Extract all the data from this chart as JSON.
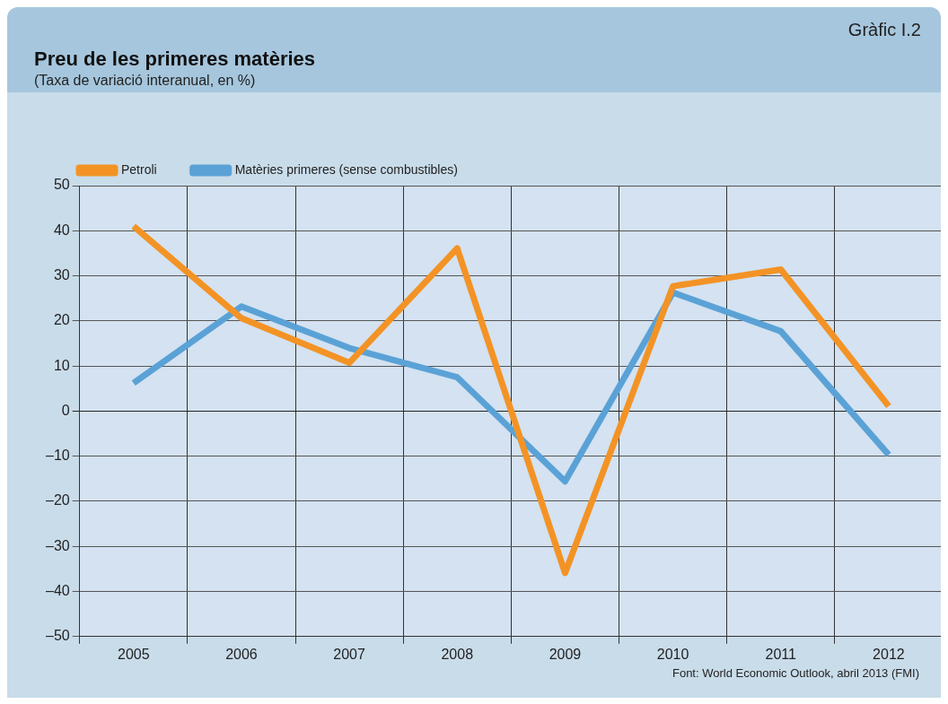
{
  "chart_data": {
    "type": "line",
    "title": "Preu de les primeres matèries",
    "subtitle": "(Taxa de variació interanual, en %)",
    "annotations": [
      "Gràfic I.2",
      "Font: World Economic Outlook, abril 2013 (FMI)"
    ],
    "categories": [
      "2005",
      "2006",
      "2007",
      "2008",
      "2009",
      "2010",
      "2011",
      "2012"
    ],
    "series": [
      {
        "name": "Petroli",
        "color": "#f39325",
        "values": [
          41.0,
          20.6,
          10.7,
          36.1,
          -35.9,
          27.7,
          31.4,
          1.1
        ]
      },
      {
        "name": "Matèries primeres (sense combustibles)",
        "color": "#5aa2d6",
        "values": [
          6.2,
          23.2,
          14.0,
          7.5,
          -15.6,
          26.3,
          17.7,
          -9.7
        ]
      }
    ],
    "ylim": [
      -50,
      50
    ],
    "yticks": [
      {
        "value": -50,
        "label": "–50"
      },
      {
        "value": -40,
        "label": "–40"
      },
      {
        "value": -30,
        "label": "–30"
      },
      {
        "value": -20,
        "label": "–20"
      },
      {
        "value": -10,
        "label": "–10"
      },
      0,
      10,
      20,
      30,
      40,
      50
    ],
    "grid": true,
    "legend": "top left",
    "marker": "none",
    "line_style": "solid"
  }
}
